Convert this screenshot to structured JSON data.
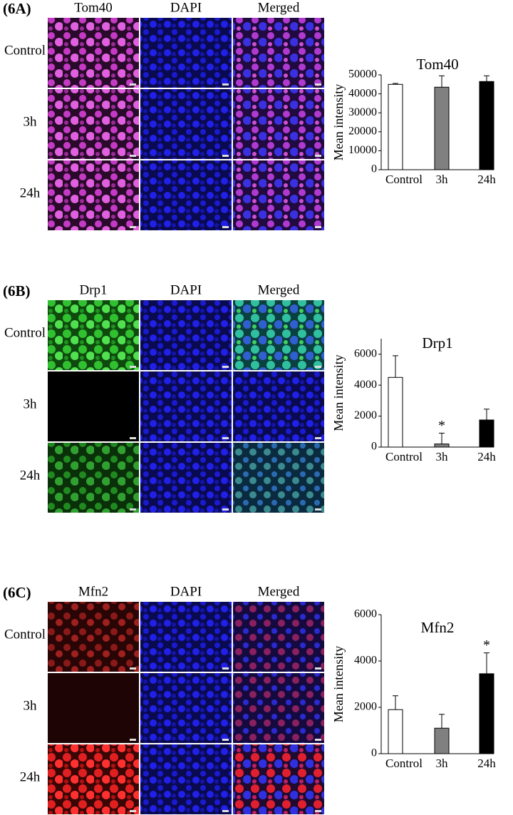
{
  "panels": [
    {
      "label": "(6A)",
      "columns": [
        "Tom40",
        "DAPI",
        "Merged"
      ],
      "rows": [
        "Control",
        "3h",
        "24h"
      ]
    },
    {
      "label": "(6B)",
      "columns": [
        "Drp1",
        "DAPI",
        "Merged"
      ],
      "rows": [
        "Control",
        "3h",
        "24h"
      ]
    },
    {
      "label": "(6C)",
      "columns": [
        "Mfn2",
        "DAPI",
        "Merged"
      ],
      "rows": [
        "Control",
        "3h",
        "24h"
      ]
    }
  ],
  "chart_data": [
    {
      "type": "bar",
      "title": "Tom40",
      "y_label": "Mean intensity",
      "categories": [
        "Control",
        "3h",
        "24h"
      ],
      "values": [
        45000,
        43500,
        46500
      ],
      "errors": [
        500,
        6000,
        3000
      ],
      "colors": [
        "#ffffff",
        "#808080",
        "#000000"
      ],
      "ylim": [
        0,
        50000
      ],
      "yticks": [
        0,
        10000,
        20000,
        30000,
        40000,
        50000
      ]
    },
    {
      "type": "bar",
      "title": "Drp1",
      "y_label": "Mean intensity",
      "categories": [
        "Control",
        "3h",
        "24h"
      ],
      "values": [
        4500,
        200,
        1750
      ],
      "errors": [
        1400,
        700,
        700
      ],
      "colors": [
        "#ffffff",
        "#808080",
        "#000000"
      ],
      "ylim": [
        0,
        7000
      ],
      "yticks": [
        0,
        2000,
        4000,
        6000
      ],
      "annotations": [
        {
          "text": "*",
          "category": "3h"
        }
      ]
    },
    {
      "type": "bar",
      "title": "Mfn2",
      "y_label": "Mean intensity",
      "categories": [
        "Control",
        "3h",
        "24h"
      ],
      "values": [
        1900,
        1100,
        3450
      ],
      "errors": [
        600,
        600,
        900
      ],
      "colors": [
        "#ffffff",
        "#808080",
        "#000000"
      ],
      "ylim": [
        0,
        6000
      ],
      "yticks": [
        0,
        2000,
        4000,
        6000
      ],
      "annotations": [
        {
          "text": "*",
          "category": "24h"
        }
      ]
    }
  ]
}
